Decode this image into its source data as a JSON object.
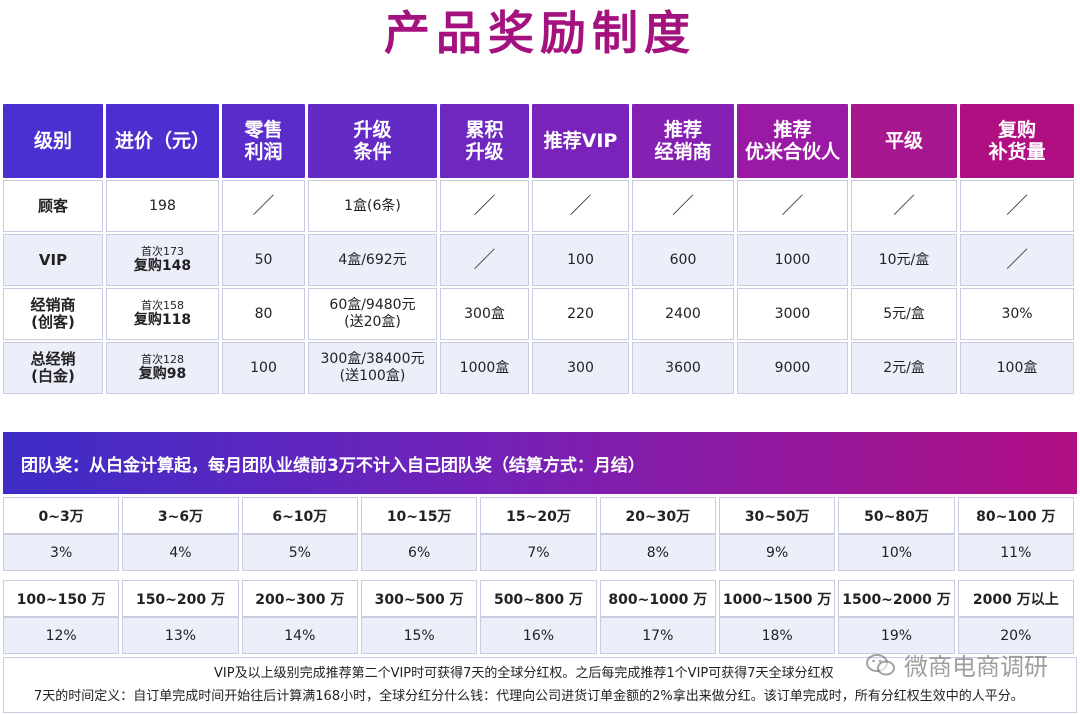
{
  "title": "产品奖励制度",
  "table": {
    "headers": [
      "级别",
      "进价（元）",
      "零售\n利润",
      "升级\n条件",
      "累积\n升级",
      "推荐VIP",
      "推荐\n经销商",
      "推荐\n优米合伙人",
      "平级",
      "复购\n补货量"
    ],
    "header_colors": [
      "#4b2fd0",
      "#4f2ecf",
      "#5a2cc9",
      "#642ac4",
      "#6e27bf",
      "#7a23ba",
      "#8620b3",
      "#9a1aa5",
      "#a5168f",
      "#b00f82"
    ],
    "rows": [
      {
        "level": "顾客",
        "price_first": "",
        "price_repeat": "198",
        "retail": "",
        "upgrade": "1盒(6条)",
        "cumulative": "／",
        "rec_vip": "／",
        "rec_dealer": "／",
        "rec_partner": "／",
        "peer": "／",
        "repurchase": "／",
        "retail_slash": "／"
      },
      {
        "level": "VIP",
        "price_first": "首次173",
        "price_repeat": "复购148",
        "retail": "50",
        "upgrade": "4盒/692元",
        "cumulative": "／",
        "rec_vip": "100",
        "rec_dealer": "600",
        "rec_partner": "1000",
        "peer": "10元/盒",
        "repurchase": "／"
      },
      {
        "level": "经销商\n(创客)",
        "price_first": "首次158",
        "price_repeat": "复购118",
        "retail": "80",
        "upgrade": "60盒/9480元\n(送20盒)",
        "cumulative": "300盒",
        "rec_vip": "220",
        "rec_dealer": "2400",
        "rec_partner": "3000",
        "peer": "5元/盒",
        "repurchase": "30%"
      },
      {
        "level": "总经销\n(白金)",
        "price_first": "首次128",
        "price_repeat": "复购98",
        "retail": "100",
        "upgrade": "300盒/38400元\n(送100盒)",
        "cumulative": "1000盒",
        "rec_vip": "300",
        "rec_dealer": "3600",
        "rec_partner": "9000",
        "peer": "2元/盒",
        "repurchase": "100盒"
      }
    ]
  },
  "team": {
    "title": "团队奖：从白金计算起，每月团队业绩前3万不计入自己团队奖（结算方式：月结）",
    "tier1": {
      "ranges": [
        "0~3万",
        "3~6万",
        "6~10万",
        "10~15万",
        "15~20万",
        "20~30万",
        "30~50万",
        "50~80万",
        "80~100 万"
      ],
      "rates": [
        "3%",
        "4%",
        "5%",
        "6%",
        "7%",
        "8%",
        "9%",
        "10%",
        "11%"
      ]
    },
    "tier2": {
      "ranges": [
        "100~150 万",
        "150~200 万",
        "200~300 万",
        "300~500 万",
        "500~800 万",
        "800~1000 万",
        "1000~1500 万",
        "1500~2000 万",
        "2000 万以上"
      ],
      "rates": [
        "12%",
        "13%",
        "14%",
        "15%",
        "16%",
        "17%",
        "18%",
        "19%",
        "20%"
      ]
    }
  },
  "footer": {
    "line1": "VIP及以上级别完成推荐第二个VIP时可获得7天的全球分红权。之后每完成推荐1个VIP可获得7天全球分红权",
    "line2": "7天的时间定义：自订单完成时间开始往后计算满168小时，全球分红分什么钱：代理向公司进货订单金额的2%拿出来做分红。该订单完成时，所有分红权生效中的人平分。"
  },
  "watermark": "微商电商调研"
}
